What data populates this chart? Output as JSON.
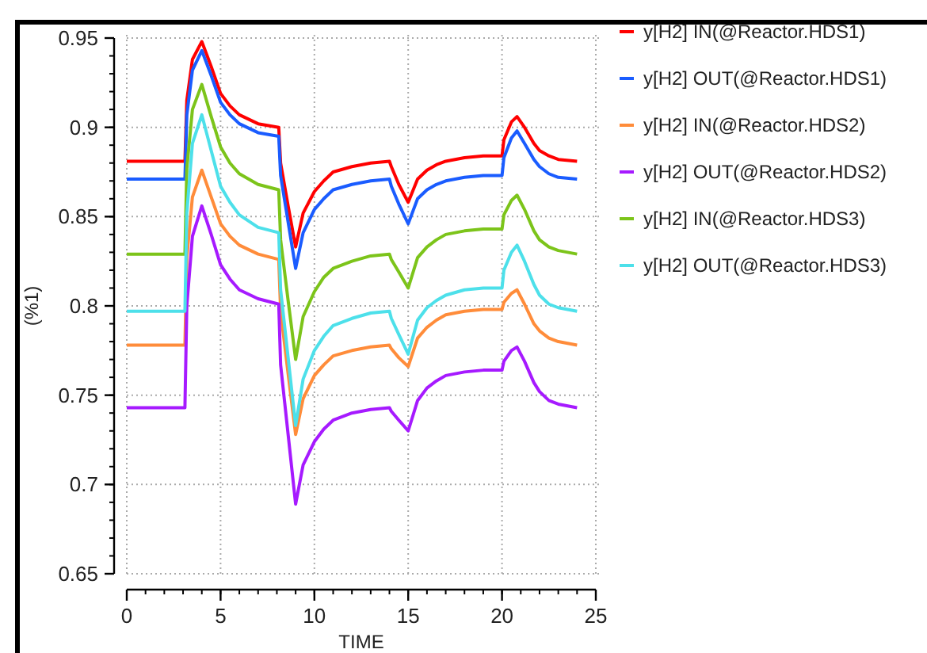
{
  "chart_data": {
    "type": "line",
    "xlabel": "TIME",
    "ylabel": "(%1)",
    "x": [
      0,
      3.1,
      3.2,
      3.5,
      4,
      4.5,
      5,
      5.5,
      6,
      7,
      8.1,
      8.2,
      8.6,
      9,
      9.4,
      10,
      10.5,
      11,
      12,
      13,
      14,
      14.1,
      14.5,
      15,
      15.5,
      16,
      16.5,
      17,
      18,
      19,
      20,
      20.1,
      20.5,
      20.8,
      21.2,
      21.7,
      22,
      22.5,
      23,
      24
    ],
    "series": [
      {
        "name": "y[H2] IN(@Reactor.HDS1)",
        "color": "#ff0000",
        "values": [
          0.881,
          0.881,
          0.915,
          0.938,
          0.948,
          0.934,
          0.919,
          0.912,
          0.907,
          0.902,
          0.9,
          0.88,
          0.856,
          0.833,
          0.852,
          0.864,
          0.87,
          0.875,
          0.878,
          0.88,
          0.881,
          0.878,
          0.868,
          0.858,
          0.871,
          0.876,
          0.879,
          0.881,
          0.883,
          0.884,
          0.884,
          0.893,
          0.903,
          0.906,
          0.9,
          0.891,
          0.887,
          0.884,
          0.882,
          0.881
        ]
      },
      {
        "name": "y[H2] OUT(@Reactor.HDS1)",
        "color": "#1a5cff",
        "values": [
          0.871,
          0.871,
          0.907,
          0.932,
          0.943,
          0.929,
          0.914,
          0.907,
          0.902,
          0.897,
          0.895,
          0.873,
          0.847,
          0.821,
          0.841,
          0.854,
          0.86,
          0.865,
          0.868,
          0.87,
          0.871,
          0.867,
          0.857,
          0.846,
          0.86,
          0.865,
          0.868,
          0.87,
          0.872,
          0.873,
          0.873,
          0.883,
          0.894,
          0.898,
          0.891,
          0.882,
          0.878,
          0.874,
          0.872,
          0.871
        ]
      },
      {
        "name": "y[H2] IN(@Reactor.HDS2)",
        "color": "#ff8c3a",
        "values": [
          0.778,
          0.778,
          0.827,
          0.861,
          0.876,
          0.861,
          0.846,
          0.839,
          0.834,
          0.829,
          0.826,
          0.797,
          0.762,
          0.728,
          0.748,
          0.761,
          0.767,
          0.772,
          0.775,
          0.777,
          0.778,
          0.776,
          0.771,
          0.766,
          0.782,
          0.788,
          0.792,
          0.795,
          0.797,
          0.798,
          0.798,
          0.802,
          0.807,
          0.809,
          0.801,
          0.79,
          0.786,
          0.782,
          0.78,
          0.778
        ]
      },
      {
        "name": "y[H2] OUT(@Reactor.HDS2)",
        "color": "#a61aff",
        "values": [
          0.743,
          0.743,
          0.8,
          0.839,
          0.856,
          0.84,
          0.823,
          0.815,
          0.809,
          0.804,
          0.801,
          0.767,
          0.728,
          0.689,
          0.711,
          0.724,
          0.731,
          0.736,
          0.74,
          0.742,
          0.743,
          0.741,
          0.736,
          0.73,
          0.747,
          0.754,
          0.758,
          0.761,
          0.763,
          0.764,
          0.764,
          0.769,
          0.775,
          0.777,
          0.769,
          0.757,
          0.752,
          0.747,
          0.745,
          0.743
        ]
      },
      {
        "name": "y[H2] IN(@Reactor.HDS3)",
        "color": "#7cc41a",
        "values": [
          0.829,
          0.829,
          0.877,
          0.91,
          0.924,
          0.906,
          0.889,
          0.88,
          0.874,
          0.868,
          0.865,
          0.837,
          0.803,
          0.77,
          0.794,
          0.808,
          0.816,
          0.821,
          0.825,
          0.828,
          0.829,
          0.826,
          0.819,
          0.81,
          0.827,
          0.833,
          0.837,
          0.84,
          0.842,
          0.843,
          0.843,
          0.851,
          0.859,
          0.862,
          0.854,
          0.842,
          0.837,
          0.833,
          0.831,
          0.829
        ]
      },
      {
        "name": "y[H2] OUT(@Reactor.HDS3)",
        "color": "#4de0ea",
        "values": [
          0.797,
          0.797,
          0.852,
          0.891,
          0.907,
          0.887,
          0.867,
          0.858,
          0.851,
          0.844,
          0.841,
          0.809,
          0.771,
          0.733,
          0.759,
          0.775,
          0.783,
          0.789,
          0.793,
          0.796,
          0.797,
          0.793,
          0.784,
          0.773,
          0.792,
          0.799,
          0.803,
          0.806,
          0.809,
          0.81,
          0.81,
          0.82,
          0.83,
          0.834,
          0.825,
          0.812,
          0.806,
          0.801,
          0.799,
          0.797
        ]
      }
    ],
    "xlim": [
      0,
      25
    ],
    "ylim": [
      0.65,
      0.95
    ],
    "xticks": [
      0,
      5,
      10,
      15,
      20,
      25
    ],
    "yticks": [
      {
        "value": 0.65,
        "label": "0.65"
      },
      {
        "value": 0.7,
        "label": "0.7"
      },
      {
        "value": 0.75,
        "label": "0.75"
      },
      {
        "value": 0.8,
        "label": "0.8"
      },
      {
        "value": 0.85,
        "label": "0.85"
      },
      {
        "value": 0.9,
        "label": "0.9"
      },
      {
        "value": 0.95,
        "label": "0.95"
      }
    ],
    "grid": true,
    "legend": "right",
    "marker": "none",
    "line_style": "solid"
  }
}
